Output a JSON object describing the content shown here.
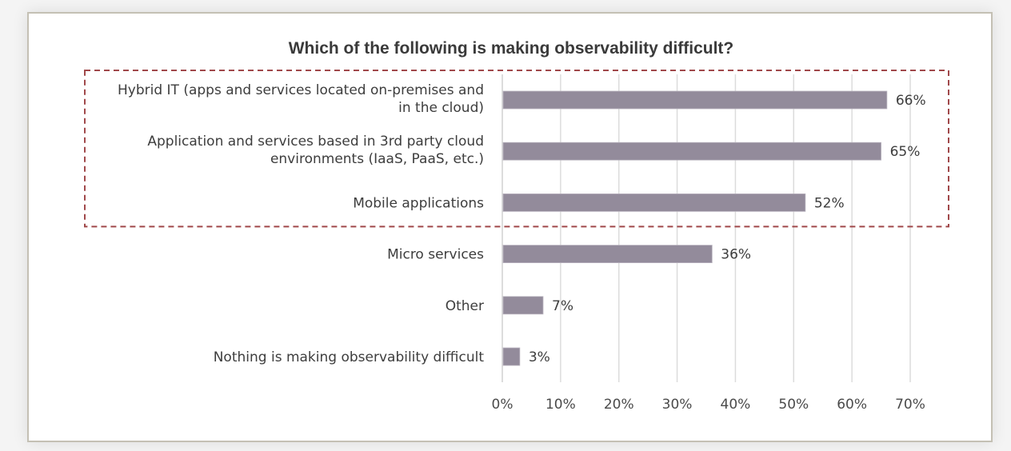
{
  "chart_data": {
    "type": "bar",
    "orientation": "horizontal",
    "title": "Which of the following is making observability difficult?",
    "xlabel": "",
    "ylabel": "",
    "categories": [
      [
        "Hybrid IT (apps and services located on-premises and",
        "in the cloud)"
      ],
      [
        "Application and services based in 3rd party cloud",
        "environments (IaaS, PaaS, etc.)"
      ],
      [
        "Mobile applications"
      ],
      [
        "Micro services"
      ],
      [
        "Other"
      ],
      [
        "Nothing is making observability difficult"
      ]
    ],
    "values": [
      66,
      65,
      52,
      36,
      7,
      3
    ],
    "data_labels": [
      "66%",
      "65%",
      "52%",
      "36%",
      "7%",
      "3%"
    ],
    "xlim": [
      0,
      70
    ],
    "x_ticks": [
      0,
      10,
      20,
      30,
      40,
      50,
      60,
      70
    ],
    "x_tick_labels": [
      "0%",
      "10%",
      "20%",
      "30%",
      "40%",
      "50%",
      "60%",
      "70%"
    ],
    "grid": "vertical",
    "legend": "none",
    "highlight_group": {
      "style": "dashed-box",
      "categories_included": [
        0,
        1,
        2
      ]
    },
    "colors": {
      "bar": "#938b9b",
      "gridline": "#dcdcdc",
      "highlight_box": "#a0484a",
      "text": "#3d3d3d"
    }
  }
}
